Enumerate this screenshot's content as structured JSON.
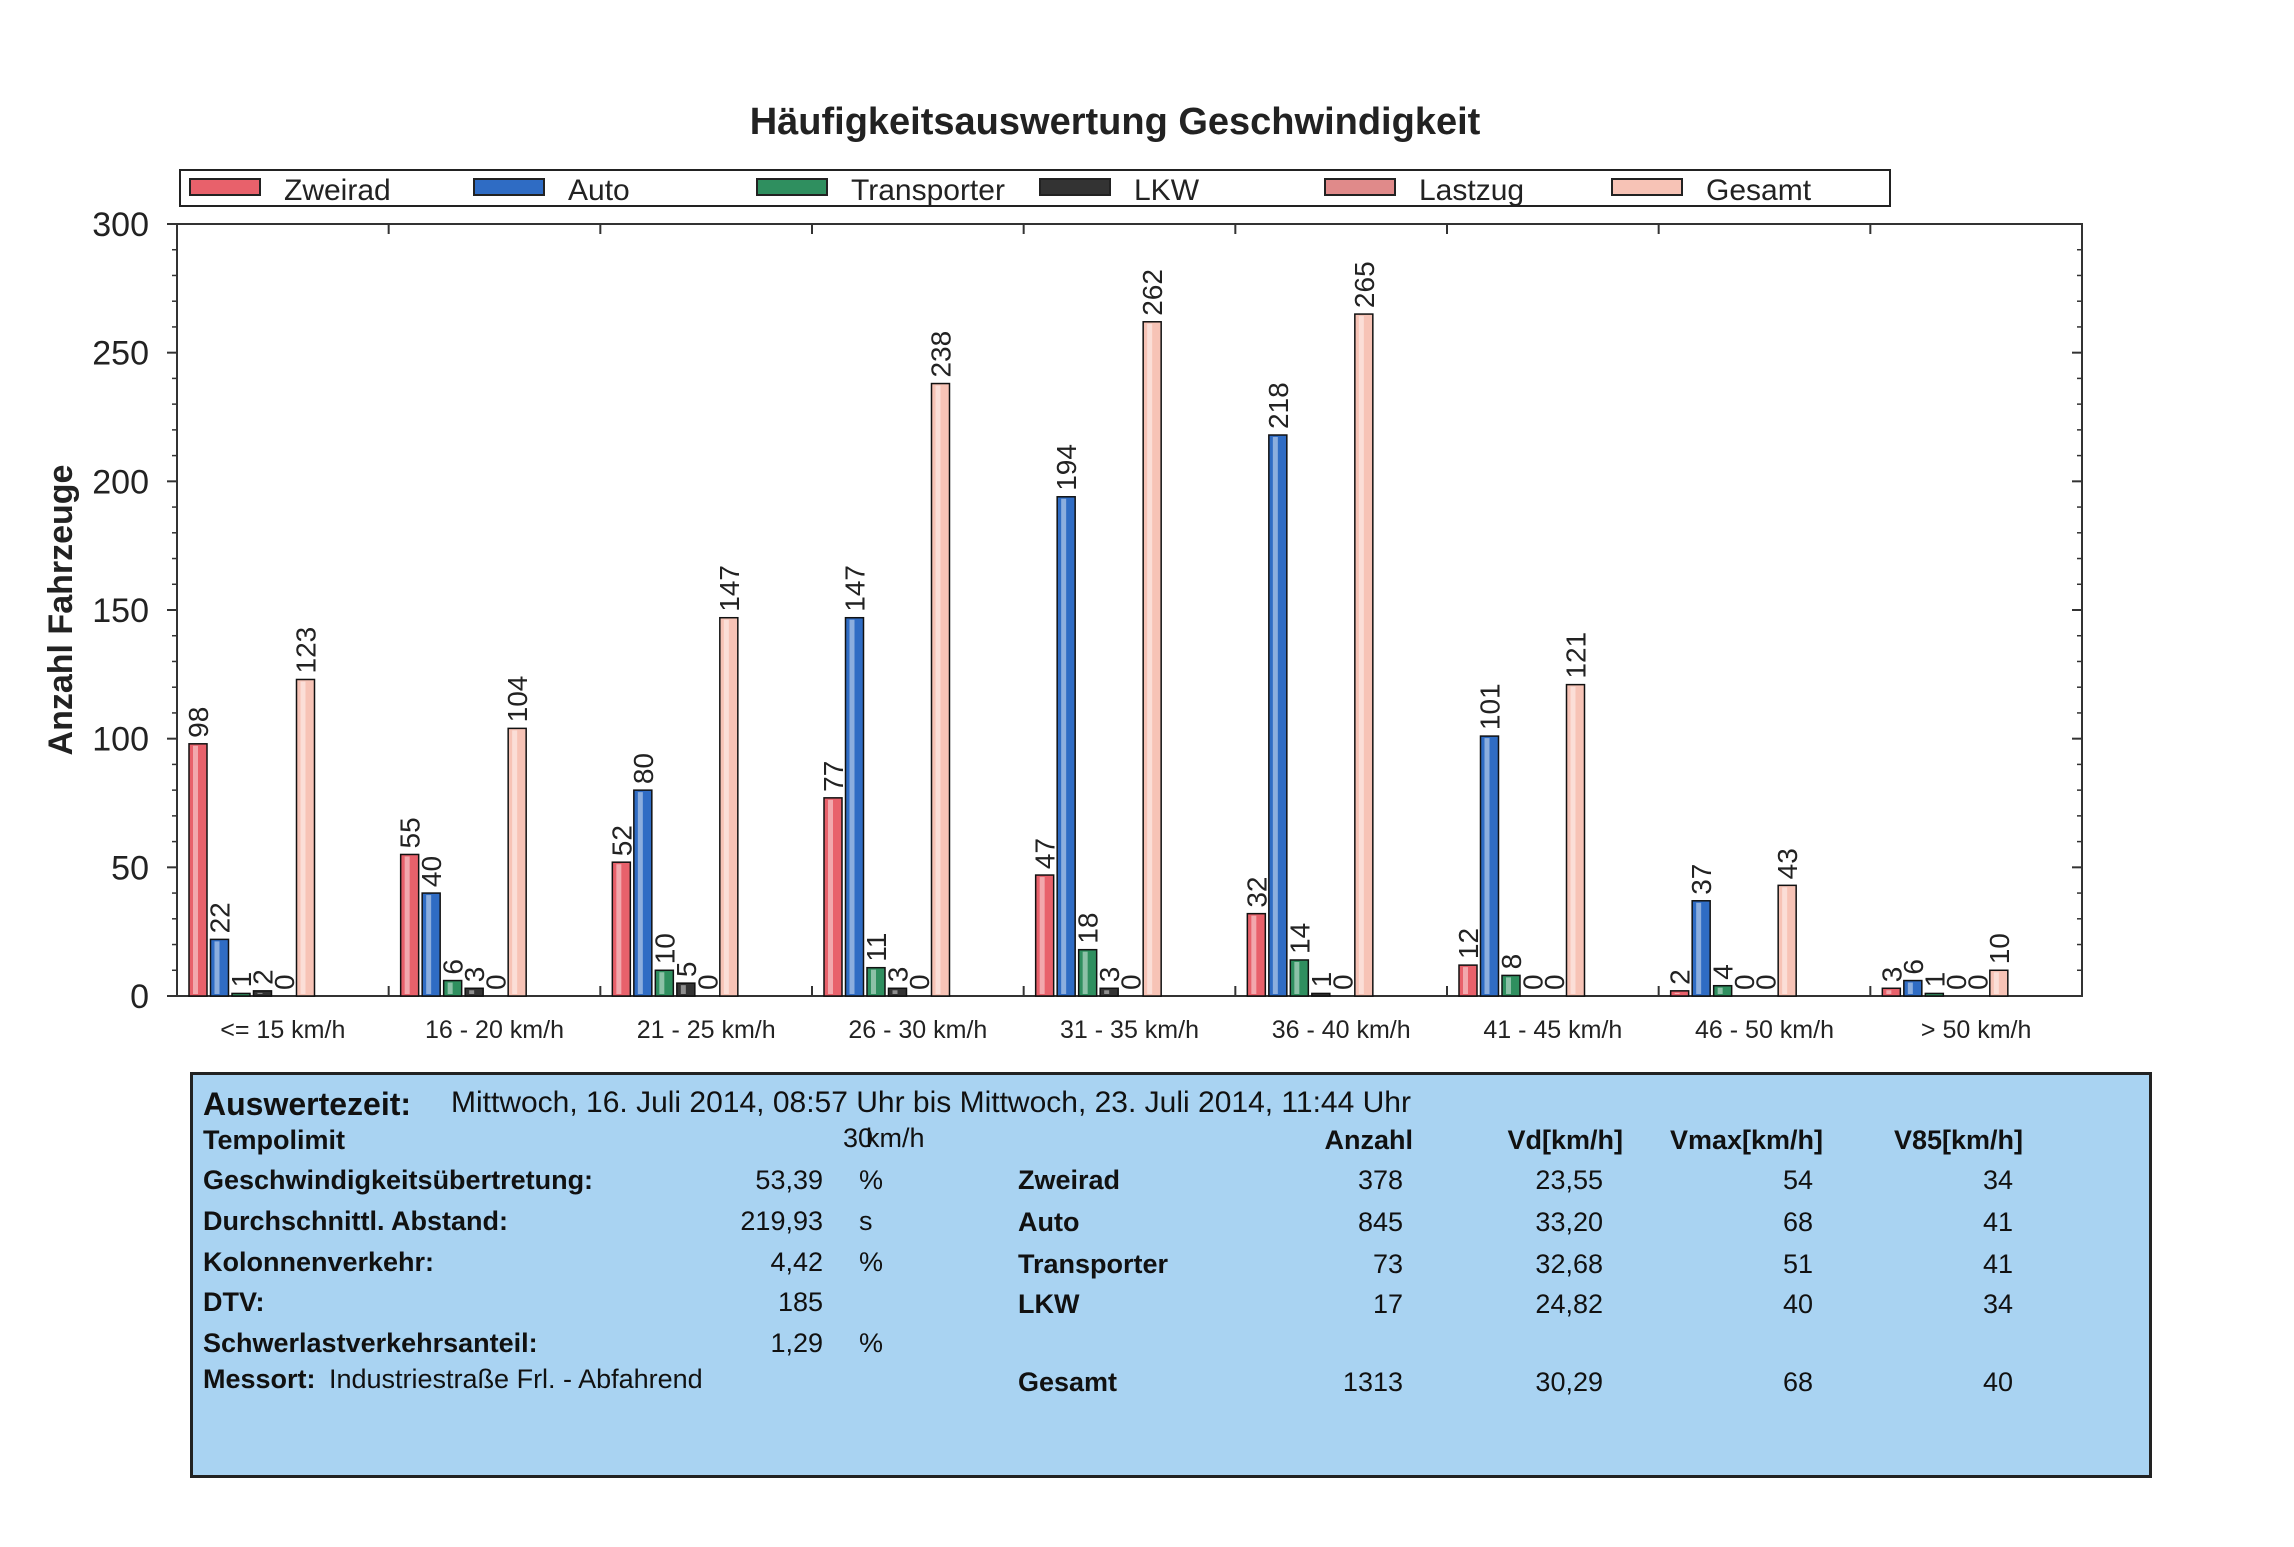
{
  "colors": {
    "Zweirad": "#e8616b",
    "Auto": "#2f6cc4",
    "Transporter": "#2f8f5f",
    "LKW": "#333333",
    "Lastzug": "#e08a8a",
    "Gesamt": "#f7c3b6",
    "panel": "#a9d3f2"
  },
  "chart_data": {
    "type": "bar",
    "title": "Häufigkeitsauswertung Geschwindigkeit",
    "xlabel": "",
    "ylabel": "Anzahl Fahrzeuge",
    "ylim": [
      0,
      300
    ],
    "yticks": [
      "0",
      "50",
      "100",
      "150",
      "200",
      "250",
      "300"
    ],
    "legend_position": "top",
    "categories": [
      "<=  15  km/h",
      "16 -  20  km/h",
      "21 -  25  km/h",
      "26 -  30  km/h",
      "31 -  35  km/h",
      "36 -  40  km/h",
      "41 -  45  km/h",
      "46 -  50  km/h",
      ">  50  km/h"
    ],
    "series": [
      {
        "name": "Zweirad",
        "values": [
          98,
          55,
          52,
          77,
          47,
          32,
          12,
          2,
          3
        ]
      },
      {
        "name": "Auto",
        "values": [
          22,
          40,
          80,
          147,
          194,
          218,
          101,
          37,
          6
        ]
      },
      {
        "name": "Transporter",
        "values": [
          1,
          6,
          10,
          11,
          18,
          14,
          8,
          4,
          1
        ]
      },
      {
        "name": "LKW",
        "values": [
          2,
          3,
          5,
          3,
          3,
          1,
          0,
          0,
          0
        ]
      },
      {
        "name": "Lastzug",
        "values": [
          0,
          0,
          0,
          0,
          0,
          0,
          0,
          0,
          0
        ]
      },
      {
        "name": "Gesamt",
        "values": [
          123,
          104,
          147,
          238,
          262,
          265,
          121,
          43,
          10
        ]
      }
    ]
  },
  "info": {
    "auswertezeit_label": "Auswertezeit:",
    "auswertezeit_value": "Mittwoch, 16. Juli 2014, 08:57 Uhr bis  Mittwoch, 23. Juli 2014, 11:44 Uhr",
    "tempolimit_label": "Tempolimit",
    "tempolimit_value": "30",
    "tempolimit_unit": "km/h",
    "stats": [
      {
        "label": "Geschwindigkeitsübertretung:",
        "value": "53,39",
        "unit": "%"
      },
      {
        "label": "Durchschnittl. Abstand:",
        "value": "219,93",
        "unit": "s"
      },
      {
        "label": "Kolonnenverkehr:",
        "value": "4,42",
        "unit": "%"
      },
      {
        "label": "DTV:",
        "value": "185",
        "unit": ""
      },
      {
        "label": "Schwerlastverkehrsanteil:",
        "value": "1,29",
        "unit": "%"
      }
    ],
    "messort_label": "Messort:",
    "messort_value": "Industriestraße Frl. - Abfahrend",
    "table_headers": [
      "Anzahl",
      "Vd[km/h]",
      "Vmax[km/h]",
      "V85[km/h]"
    ],
    "table_rows": [
      {
        "name": "Zweirad",
        "anzahl": "378",
        "vd": "23,55",
        "vmax": "54",
        "v85": "34"
      },
      {
        "name": "Auto",
        "anzahl": "845",
        "vd": "33,20",
        "vmax": "68",
        "v85": "41"
      },
      {
        "name": "Transporter",
        "anzahl": "73",
        "vd": "32,68",
        "vmax": "51",
        "v85": "41"
      },
      {
        "name": "LKW",
        "anzahl": "17",
        "vd": "24,82",
        "vmax": "40",
        "v85": "34"
      }
    ],
    "total_row": {
      "name": "Gesamt",
      "anzahl": "1313",
      "vd": "30,29",
      "vmax": "68",
      "v85": "40"
    }
  }
}
